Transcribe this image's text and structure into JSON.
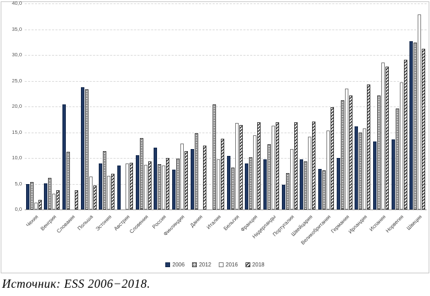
{
  "chart_data": {
    "type": "bar",
    "title": "",
    "xlabel": "",
    "ylabel": "",
    "categories": [
      "Чехия",
      "Венгрия",
      "Словакия",
      "Польша",
      "Эстония",
      "Австрия",
      "Словения",
      "Россия",
      "Финляндия",
      "Дания",
      "Италия",
      "Бельгия",
      "Франция",
      "Нидерланды",
      "Португалия",
      "Швейцария",
      "Великобритания",
      "Германия",
      "Ирландия",
      "Испания",
      "Норвегия",
      "Швеция"
    ],
    "series": [
      {
        "name": "2006",
        "style": "solid-navy",
        "values": [
          5.0,
          5.1,
          20.4,
          23.8,
          8.9,
          8.6,
          10.5,
          12.0,
          7.7,
          11.7,
          0,
          10.4,
          9.0,
          9.8,
          4.8,
          9.7,
          7.9,
          10.0,
          16.1,
          13.2,
          13.6,
          32.7
        ]
      },
      {
        "name": "2012",
        "style": "dotted",
        "values": [
          5.3,
          6.2,
          11.2,
          23.4,
          11.4,
          0,
          13.9,
          8.8,
          9.9,
          14.8,
          20.4,
          8.2,
          10.1,
          12.7,
          7.1,
          9.4,
          7.6,
          21.2,
          14.9,
          22.1,
          19.6,
          32.4
        ]
      },
      {
        "name": "2016",
        "style": "white",
        "values": [
          1.4,
          3.1,
          0,
          6.4,
          6.6,
          8.9,
          8.7,
          8.5,
          12.8,
          0,
          9.8,
          16.8,
          14.4,
          16.3,
          11.8,
          14.1,
          15.4,
          23.5,
          15.8,
          28.5,
          24.7,
          37.9
        ]
      },
      {
        "name": "2018",
        "style": "diagonal-hatch",
        "values": [
          1.9,
          3.8,
          3.7,
          4.7,
          6.9,
          9.1,
          9.4,
          10.0,
          11.3,
          12.4,
          13.8,
          16.4,
          17.0,
          17.0,
          17.0,
          17.1,
          19.9,
          22.2,
          24.3,
          27.7,
          29.1,
          31.2
        ]
      }
    ],
    "ylim": [
      0,
      40
    ],
    "ytick_step": 5,
    "ytick_labels": [
      "0,0",
      "5,0",
      "10,0",
      "15,0",
      "20,0",
      "25,0",
      "30,0",
      "35,0",
      "40,0"
    ],
    "grid": "horizontal-dashed",
    "legend_position": "bottom-center",
    "colors": {
      "bar_2006": "#1f3864",
      "bar_border": "#3f3f3f",
      "white_bar_border": "#7f7f7f",
      "gridline": "#d9d9d9",
      "axis_line": "#9a9a9a",
      "axis_text": "#595959"
    }
  },
  "caption": {
    "text": "Источник: ESS 2006−2018."
  }
}
